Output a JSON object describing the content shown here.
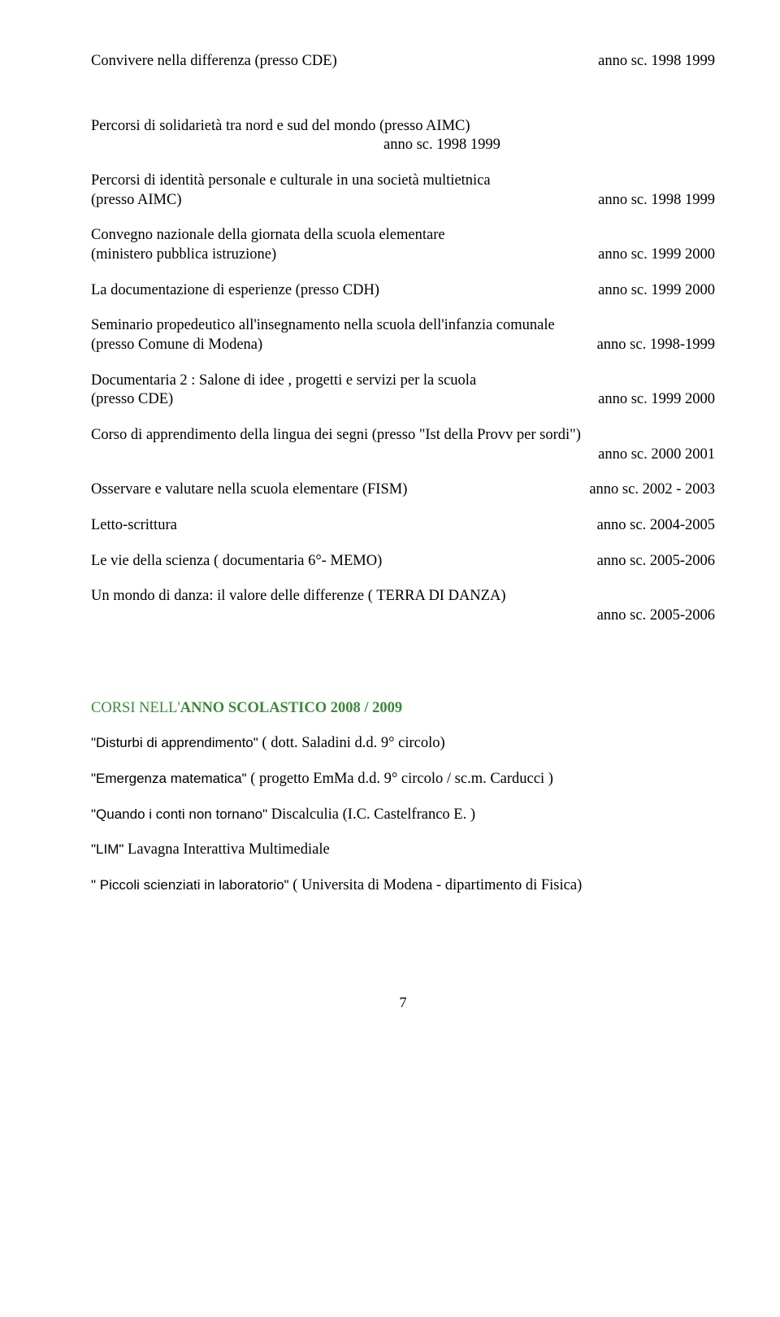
{
  "e1": {
    "title": "Convivere nella differenza (presso CDE)",
    "year": "anno sc. 1998 1999"
  },
  "e2": {
    "title": "Percorsi di solidarietà tra nord e sud del mondo (presso AIMC)",
    "year": "anno sc. 1998 1999"
  },
  "e3": {
    "title": "Percorsi di identità personale e culturale in una società multietnica",
    "place": "(presso AIMC)",
    "year": "anno sc. 1998 1999"
  },
  "e4": {
    "title": "Convegno nazionale della giornata della scuola elementare",
    "place": "(ministero pubblica istruzione)",
    "year": "anno sc. 1999 2000"
  },
  "e5": {
    "title": "La documentazione di esperienze (presso CDH)",
    "year": "anno sc. 1999 2000"
  },
  "e6": {
    "title": "Seminario propedeutico all'insegnamento nella scuola dell'infanzia comunale",
    "place": "(presso Comune di Modena)",
    "year": "anno sc. 1998-1999"
  },
  "e7": {
    "title": "Documentaria 2 : Salone di idee , progetti e servizi per la scuola",
    "place": "(presso CDE)",
    "year": "anno sc. 1999 2000"
  },
  "e8": {
    "title": "Corso di apprendimento della lingua dei segni  (presso \"Ist della Provv per sordi\")",
    "year": "anno sc. 2000 2001"
  },
  "e9": {
    "title": "Osservare e valutare nella scuola elementare (FISM)",
    "year": "anno sc. 2002 - 2003"
  },
  "e10": {
    "title": "Letto-scrittura",
    "year": "anno sc. 2004-2005"
  },
  "e11": {
    "title": "Le vie della scienza ( documentaria 6°- MEMO)",
    "year": "anno sc. 2005-2006"
  },
  "e12": {
    "title": "Un mondo di danza: il valore delle differenze ( TERRA DI DANZA)",
    "year": "anno sc. 2005-2006"
  },
  "section_prefix": "CORSI NELL'",
  "section_bold": "ANNO SCOLASTICO 2008 / 2009",
  "c1": {
    "name": "\"Disturbi di apprendimento\"",
    "rest": " (  dott. Saladini  d.d. 9° circolo)"
  },
  "c2": {
    "name": "\"Emergenza matematica\"",
    "rest": " ( progetto EmMa   d.d. 9° circolo / sc.m. Carducci )"
  },
  "c3": {
    "name": "\"Quando i conti non tornano\"",
    "rest": "  Discalculia   (I.C. Castelfranco E. )"
  },
  "c4": {
    "name": "\"LIM\"",
    "rest": "   Lavagna Interattiva Multimediale"
  },
  "c5": {
    "name": "\" Piccoli scienziati in laboratorio\"",
    "rest": " ( Universita di Modena - dipartimento di Fisica)"
  },
  "page": "7"
}
